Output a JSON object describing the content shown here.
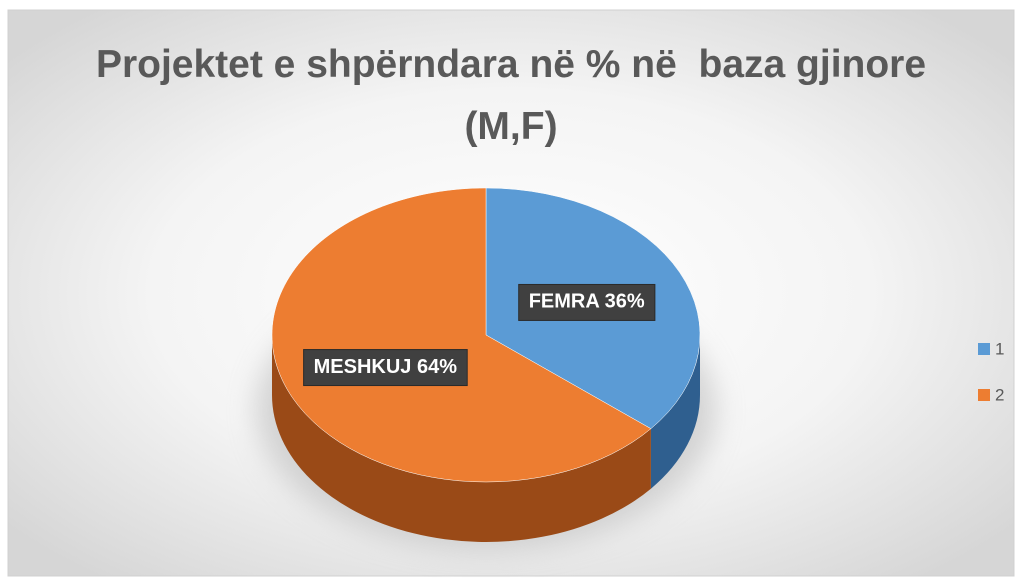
{
  "chart_data": {
    "type": "pie",
    "title": "Projektet e shpërndara në % në  baza gjinore (M,F)",
    "categories": [
      "1",
      "2"
    ],
    "values": [
      36,
      64
    ],
    "value_labels": [
      "FEMRA 36%",
      "MESHKUJ  64%"
    ],
    "colors": [
      "#5b9bd5",
      "#ed7d31"
    ],
    "side_colors": [
      "#2f5f8f",
      "#9a4a17"
    ],
    "legend": "right"
  }
}
